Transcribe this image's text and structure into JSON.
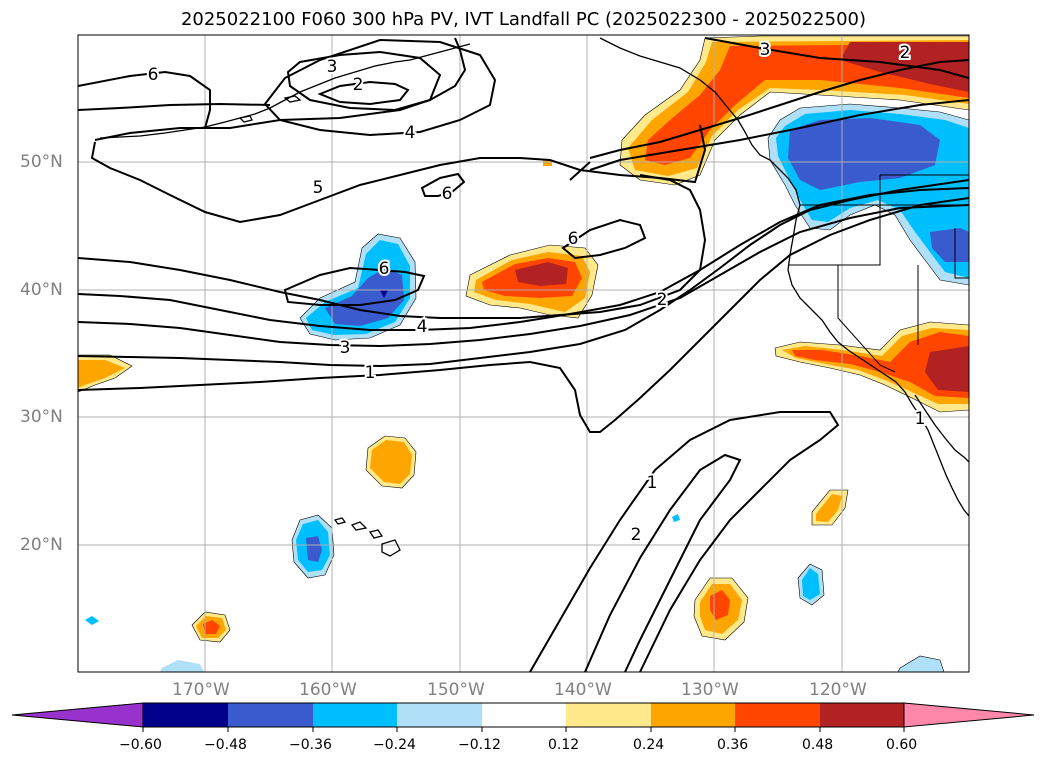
{
  "title": "2025022100 F060 300 hPa PV, IVT Landfall PC (2025022300 - 2025022500)",
  "map": {
    "lat_ticks": [
      "50°N",
      "40°N",
      "30°N",
      "20°N"
    ],
    "lon_ticks": [
      "170°W",
      "160°W",
      "150°W",
      "140°W",
      "130°W",
      "120°W"
    ],
    "lat_range": [
      10,
      60
    ],
    "lon_range": [
      -180,
      -110
    ],
    "contour_labels": [
      "6",
      "3",
      "2",
      "4",
      "5",
      "6",
      "6",
      "6",
      "4",
      "3",
      "1",
      "2",
      "3",
      "2",
      "1",
      "2",
      "1"
    ],
    "contour_color": "#000000",
    "gridline_color": "#b0b0b0"
  },
  "colorbar": {
    "ticks": [
      "−0.60",
      "−0.48",
      "−0.36",
      "−0.24",
      "−0.12",
      "0.12",
      "0.24",
      "0.36",
      "0.48",
      "0.60"
    ],
    "colors": [
      "#9932cc",
      "#00008b",
      "#3a5bcd",
      "#00bfff",
      "#b0e0f8",
      "#ffffff",
      "#ffe98a",
      "#ffa500",
      "#ff4500",
      "#b22222",
      "#ff88aa"
    ]
  }
}
